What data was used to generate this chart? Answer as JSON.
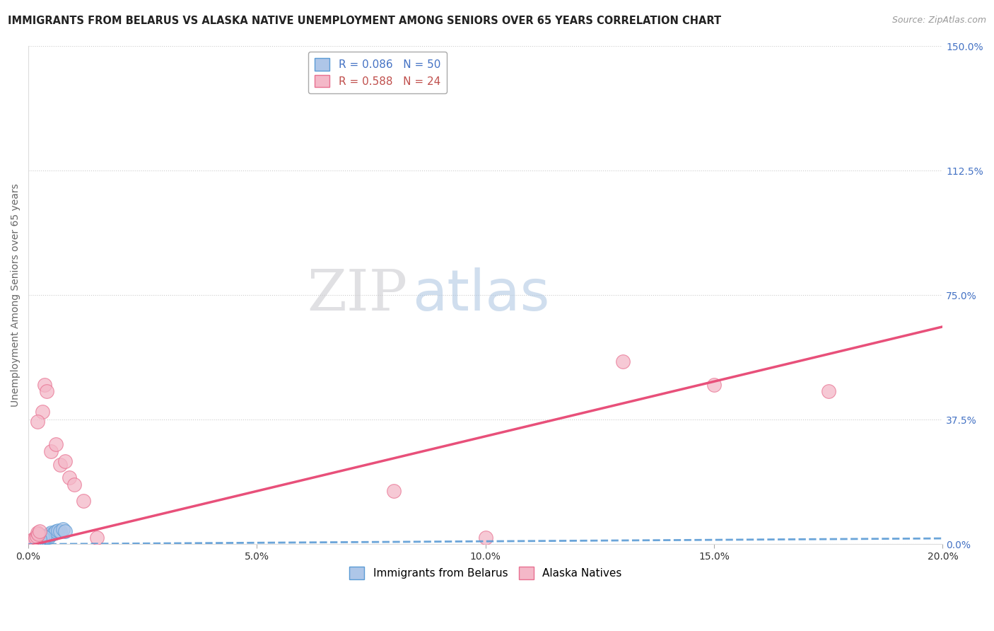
{
  "title": "IMMIGRANTS FROM BELARUS VS ALASKA NATIVE UNEMPLOYMENT AMONG SENIORS OVER 65 YEARS CORRELATION CHART",
  "source": "Source: ZipAtlas.com",
  "ylabel": "Unemployment Among Seniors over 65 years",
  "xlim": [
    0.0,
    0.2
  ],
  "ylim": [
    0.0,
    1.5
  ],
  "xticks": [
    0.0,
    0.05,
    0.1,
    0.15,
    0.2
  ],
  "xticklabels": [
    "0.0%",
    "5.0%",
    "10.0%",
    "15.0%",
    "20.0%"
  ],
  "yticks_right": [
    0.0,
    0.375,
    0.75,
    1.125,
    1.5
  ],
  "yticklabels_right": [
    "0.0%",
    "37.5%",
    "75.0%",
    "112.5%",
    "150.0%"
  ],
  "legend_blue_label": "R = 0.086   N = 50",
  "legend_pink_label": "R = 0.588   N = 24",
  "legend_blue_bottom": "Immigrants from Belarus",
  "legend_pink_bottom": "Alaska Natives",
  "blue_fill": "#aec6e8",
  "blue_edge": "#5b9bd5",
  "pink_fill": "#f4b8c8",
  "pink_edge": "#e87090",
  "blue_line_color": "#5b9bd5",
  "pink_line_color": "#e8507a",
  "watermark_zip": "ZIP",
  "watermark_atlas": "atlas",
  "background_color": "#ffffff",
  "grid_color": "#cccccc",
  "title_color": "#222222",
  "axis_label_color": "#666666",
  "right_tick_color": "#4472c4",
  "blue_trend": [
    0.0,
    0.0175
  ],
  "pink_trend": [
    -0.005,
    0.655
  ],
  "blue_scatter_x": [
    0.0002,
    0.0003,
    0.0004,
    0.0005,
    0.0006,
    0.0007,
    0.0008,
    0.0009,
    0.001,
    0.0011,
    0.0012,
    0.0013,
    0.0014,
    0.0015,
    0.0016,
    0.0017,
    0.0018,
    0.0019,
    0.002,
    0.0021,
    0.0022,
    0.0023,
    0.0024,
    0.0025,
    0.0026,
    0.0027,
    0.0028,
    0.003,
    0.0032,
    0.0034,
    0.0036,
    0.0038,
    0.004,
    0.0042,
    0.0044,
    0.0046,
    0.0048,
    0.005,
    0.0055,
    0.006,
    0.0065,
    0.007,
    0.0075,
    0.008,
    0.003,
    0.0035,
    0.0025,
    0.0015,
    0.001,
    0.0005
  ],
  "blue_scatter_y": [
    0.005,
    0.003,
    0.008,
    0.004,
    0.006,
    0.01,
    0.005,
    0.007,
    0.012,
    0.008,
    0.01,
    0.006,
    0.009,
    0.004,
    0.011,
    0.007,
    0.013,
    0.005,
    0.015,
    0.009,
    0.012,
    0.008,
    0.014,
    0.01,
    0.016,
    0.006,
    0.011,
    0.018,
    0.022,
    0.02,
    0.025,
    0.019,
    0.027,
    0.024,
    0.021,
    0.03,
    0.028,
    0.035,
    0.032,
    0.038,
    0.042,
    0.04,
    0.045,
    0.038,
    0.02,
    0.022,
    0.015,
    0.008,
    0.003,
    0.002
  ],
  "pink_scatter_x": [
    0.0005,
    0.001,
    0.0015,
    0.0018,
    0.002,
    0.0022,
    0.0025,
    0.003,
    0.0035,
    0.004,
    0.005,
    0.006,
    0.007,
    0.008,
    0.009,
    0.01,
    0.012,
    0.015,
    0.002,
    0.08,
    0.1,
    0.13,
    0.15,
    0.175
  ],
  "pink_scatter_y": [
    0.01,
    0.015,
    0.02,
    0.025,
    0.035,
    0.03,
    0.04,
    0.4,
    0.48,
    0.46,
    0.28,
    0.3,
    0.24,
    0.25,
    0.2,
    0.18,
    0.13,
    0.02,
    0.37,
    0.16,
    0.02,
    0.55,
    0.48,
    0.46
  ]
}
